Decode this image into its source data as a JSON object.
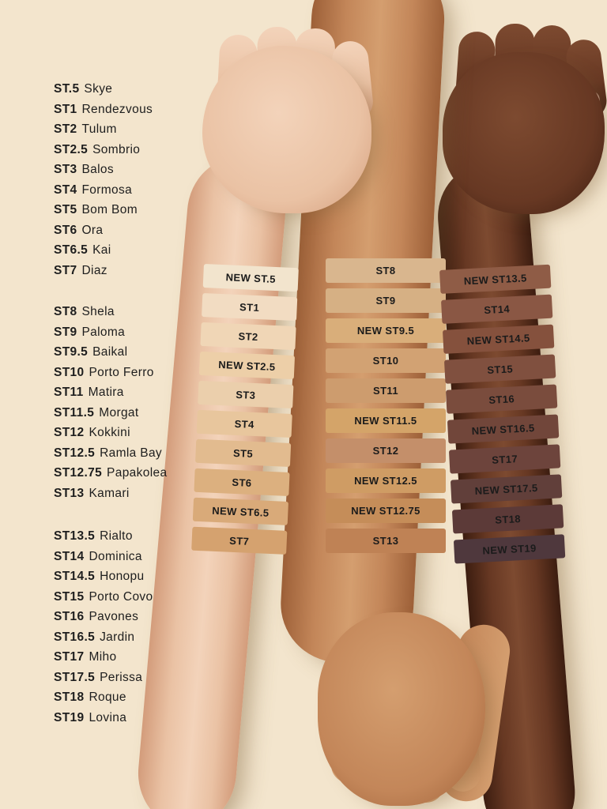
{
  "page": {
    "background_color": "#f3e5cd",
    "text_color": "#1e1e1e"
  },
  "shade_list": {
    "groups": [
      {
        "items": [
          {
            "code": "ST.5",
            "name": "Skye"
          },
          {
            "code": "ST1",
            "name": "Rendezvous"
          },
          {
            "code": "ST2",
            "name": "Tulum"
          },
          {
            "code": "ST2.5",
            "name": "Sombrio"
          },
          {
            "code": "ST3",
            "name": "Balos"
          },
          {
            "code": "ST4",
            "name": "Formosa"
          },
          {
            "code": "ST5",
            "name": "Bom Bom"
          },
          {
            "code": "ST6",
            "name": "Ora"
          },
          {
            "code": "ST6.5",
            "name": "Kai"
          },
          {
            "code": "ST7",
            "name": "Diaz"
          }
        ]
      },
      {
        "items": [
          {
            "code": "ST8",
            "name": "Shela"
          },
          {
            "code": "ST9",
            "name": "Paloma"
          },
          {
            "code": "ST9.5",
            "name": "Baikal"
          },
          {
            "code": "ST10",
            "name": "Porto Ferro"
          },
          {
            "code": "ST11",
            "name": "Matira"
          },
          {
            "code": "ST11.5",
            "name": "Morgat"
          },
          {
            "code": "ST12",
            "name": "Kokkini"
          },
          {
            "code": "ST12.5",
            "name": "Ramla Bay"
          },
          {
            "code": "ST12.75",
            "name": "Papakolea"
          },
          {
            "code": "ST13",
            "name": "Kamari"
          }
        ]
      },
      {
        "items": [
          {
            "code": "ST13.5",
            "name": "Rialto"
          },
          {
            "code": "ST14",
            "name": "Dominica"
          },
          {
            "code": "ST14.5",
            "name": "Honopu"
          },
          {
            "code": "ST15",
            "name": "Porto Covo"
          },
          {
            "code": "ST16",
            "name": "Pavones"
          },
          {
            "code": "ST16.5",
            "name": "Jardin"
          },
          {
            "code": "ST17",
            "name": "Miho"
          },
          {
            "code": "ST17.5",
            "name": "Perissa"
          },
          {
            "code": "ST18",
            "name": "Roque"
          },
          {
            "code": "ST19",
            "name": "Lovina"
          }
        ]
      }
    ]
  },
  "arms": [
    {
      "name": "light-arm",
      "skin": {
        "base": "#eac2a4",
        "highlight": "#f3d3ba",
        "shadow": "#d39c7b",
        "nail": "#eddbd3"
      },
      "swatches": [
        {
          "label": "NEW ST.5",
          "color": "#f2e4cd"
        },
        {
          "label": "ST1",
          "color": "#f2dcc2"
        },
        {
          "label": "ST2",
          "color": "#f0d6b6"
        },
        {
          "label": "NEW ST2.5",
          "color": "#edcfa8"
        },
        {
          "label": "ST3",
          "color": "#ebcfac"
        },
        {
          "label": "ST4",
          "color": "#e8c69d"
        },
        {
          "label": "ST5",
          "color": "#e2bb8f"
        },
        {
          "label": "ST6",
          "color": "#dcb07f"
        },
        {
          "label": "NEW ST6.5",
          "color": "#d9aa79"
        },
        {
          "label": "ST7",
          "color": "#d5a26f"
        }
      ]
    },
    {
      "name": "medium-arm",
      "skin": {
        "base": "#c38659",
        "highlight": "#d49e6f",
        "shadow": "#9d6038",
        "nail": "#d8bfb2"
      },
      "swatches": [
        {
          "label": "ST8",
          "color": "#d9b68e"
        },
        {
          "label": "ST9",
          "color": "#d6b084"
        },
        {
          "label": "NEW ST9.5",
          "color": "#d9ae7a"
        },
        {
          "label": "ST10",
          "color": "#d2a273"
        },
        {
          "label": "ST11",
          "color": "#cd9c6e"
        },
        {
          "label": "NEW ST11.5",
          "color": "#d4a469"
        },
        {
          "label": "ST12",
          "color": "#c48f6a"
        },
        {
          "label": "NEW ST12.5",
          "color": "#cf9c64"
        },
        {
          "label": "NEW ST12.75",
          "color": "#c58d59"
        },
        {
          "label": "ST13",
          "color": "#bf8255"
        }
      ]
    },
    {
      "name": "deep-arm",
      "skin": {
        "base": "#673823",
        "highlight": "#7d4a30",
        "shadow": "#3c1d10",
        "nail": "#c7a18e"
      },
      "swatches": [
        {
          "label": "NEW ST13.5",
          "color": "#8f5c46"
        },
        {
          "label": "ST14",
          "color": "#8a5744"
        },
        {
          "label": "NEW ST14.5",
          "color": "#85513d"
        },
        {
          "label": "ST15",
          "color": "#80503f"
        },
        {
          "label": "ST16",
          "color": "#7a4c3d"
        },
        {
          "label": "NEW ST16.5",
          "color": "#71463a"
        },
        {
          "label": "ST17",
          "color": "#6d443c"
        },
        {
          "label": "NEW ST17.5",
          "color": "#613f3a"
        },
        {
          "label": "ST18",
          "color": "#5c3a38"
        },
        {
          "label": "NEW ST19",
          "color": "#4f383d"
        }
      ]
    }
  ]
}
